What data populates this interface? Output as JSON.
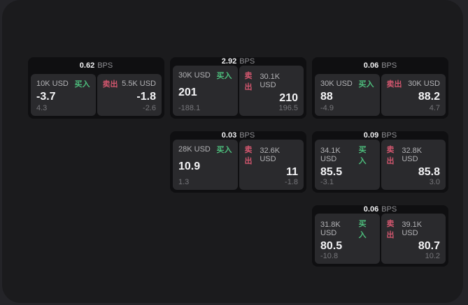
{
  "labels": {
    "bps_suffix": "BPS",
    "buy": "买入",
    "sell": "卖出"
  },
  "colors": {
    "background": "#242428",
    "surface": "#1b1b1d",
    "card": "#0f0f11",
    "panel": "#2a2a2d",
    "buy_green": "#4dbd7c",
    "sell_red": "#d2566e",
    "primary_text": "#f3f3f5",
    "muted_text": "#76767a"
  },
  "cards": [
    {
      "bps": "0.62",
      "row": 1,
      "col": 1,
      "buy": {
        "amount": "10K USD",
        "price": "-3.7",
        "delta": "4.3"
      },
      "sell": {
        "amount": "5.5K USD",
        "price": "-1.8",
        "delta": "-2.6"
      }
    },
    {
      "bps": "2.92",
      "row": 1,
      "col": 2,
      "buy": {
        "amount": "30K USD",
        "price": "201",
        "delta": "-188.1"
      },
      "sell": {
        "amount": "30.1K USD",
        "price": "210",
        "delta": "196.5"
      }
    },
    {
      "bps": "0.06",
      "row": 1,
      "col": 3,
      "buy": {
        "amount": "30K USD",
        "price": "88",
        "delta": "-4.9"
      },
      "sell": {
        "amount": "30K USD",
        "price": "88.2",
        "delta": "4.7"
      }
    },
    {
      "bps": "0.03",
      "row": 2,
      "col": 2,
      "buy": {
        "amount": "28K USD",
        "price": "10.9",
        "delta": "1.3"
      },
      "sell": {
        "amount": "32.6K USD",
        "price": "11",
        "delta": "-1.8"
      }
    },
    {
      "bps": "0.09",
      "row": 2,
      "col": 3,
      "buy": {
        "amount": "34.1K USD",
        "price": "85.5",
        "delta": "-3.1"
      },
      "sell": {
        "amount": "32.8K USD",
        "price": "85.8",
        "delta": "3.0"
      }
    },
    {
      "bps": "0.06",
      "row": 3,
      "col": 3,
      "buy": {
        "amount": "31.8K USD",
        "price": "80.5",
        "delta": "-10.8"
      },
      "sell": {
        "amount": "39.1K USD",
        "price": "80.7",
        "delta": "10.2"
      }
    }
  ]
}
